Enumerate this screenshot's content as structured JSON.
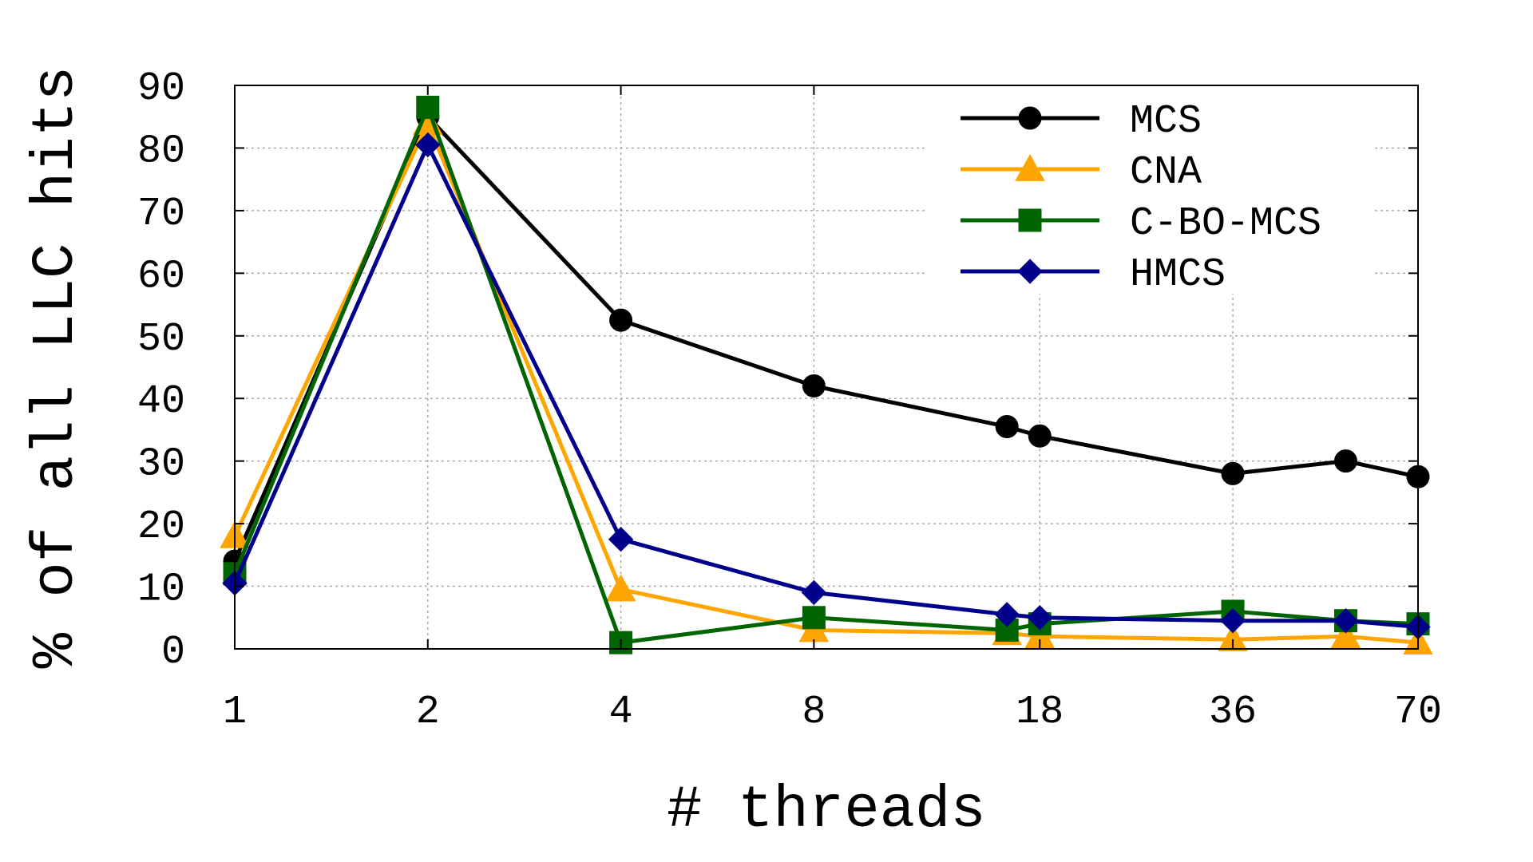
{
  "chart_data": {
    "type": "line",
    "title": "",
    "xlabel": "# threads",
    "ylabel": "% of all LLC hits",
    "x_tick_labels": [
      "1",
      "2",
      "4",
      "8",
      "18",
      "36",
      "70"
    ],
    "x_scale": "log2",
    "ylim": [
      0,
      90
    ],
    "y_ticks": [
      0,
      10,
      20,
      30,
      40,
      50,
      60,
      70,
      80,
      90
    ],
    "grid": true,
    "legend_position": "top-right",
    "x": [
      1,
      2,
      4,
      8,
      16,
      18,
      36,
      54,
      70
    ],
    "series": [
      {
        "name": "MCS",
        "color": "#000000",
        "marker": "circle",
        "values": [
          14,
          85,
          52.5,
          42,
          35.5,
          34,
          28,
          30,
          27.5
        ]
      },
      {
        "name": "CNA",
        "color": "#ffa500",
        "marker": "triangle",
        "values": [
          18,
          84,
          9.5,
          3,
          2.5,
          2,
          1.5,
          2,
          1
        ]
      },
      {
        "name": "C-BO-MCS",
        "color": "#006400",
        "marker": "square",
        "values": [
          12,
          86.5,
          1,
          5,
          3,
          4,
          6,
          4.5,
          4
        ]
      },
      {
        "name": "HMCS",
        "color": "#00008b",
        "marker": "diamond",
        "values": [
          10.5,
          80.5,
          17.5,
          9,
          5.5,
          5,
          4.5,
          4.5,
          3.5
        ]
      }
    ]
  }
}
